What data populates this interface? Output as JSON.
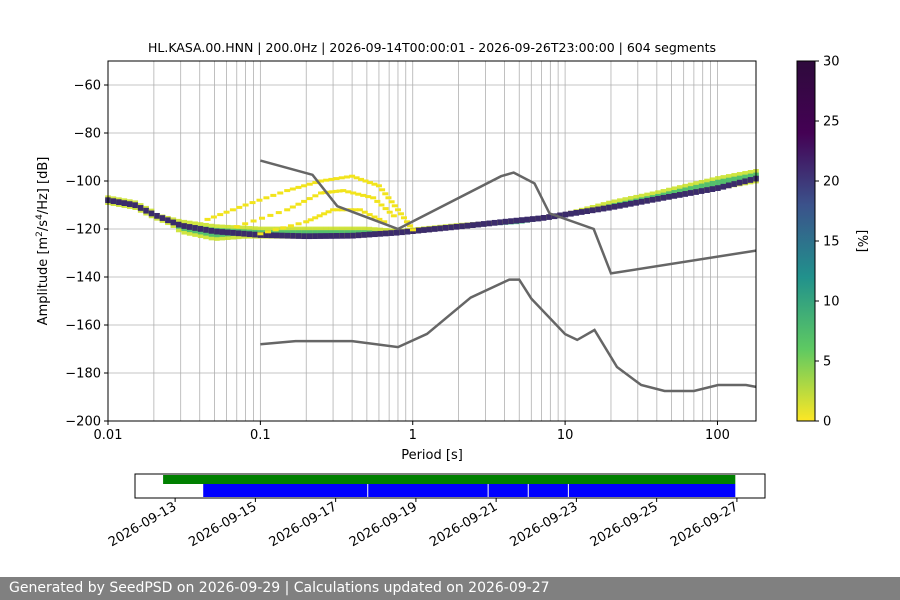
{
  "chart_data": [
    {
      "type": "heatmap",
      "title": "HL.KASA.00.HNN | 200.0Hz | 2026-09-14T00:00:01 - 2026-09-26T23:00:00 | 604 segments",
      "xlabel": "Period [s]",
      "ylabel_parts": [
        "Amplitude [m",
        "2",
        "/s",
        "4",
        "/Hz] [dB]"
      ],
      "x_scale": "log",
      "xlim": [
        0.01,
        179
      ],
      "ylim": [
        -200,
        -50
      ],
      "grid": "vertical lines at log ticks",
      "x_ticks": [
        {
          "v": 0.01,
          "label": "0.01"
        },
        {
          "v": 0.1,
          "label": "0.1"
        },
        {
          "v": 1,
          "label": "1"
        },
        {
          "v": 10,
          "label": "10"
        },
        {
          "v": 100,
          "label": "100"
        }
      ],
      "y_ticks": [
        {
          "v": -60,
          "label": "−60"
        },
        {
          "v": -80,
          "label": "−80"
        },
        {
          "v": -100,
          "label": "−100"
        },
        {
          "v": -120,
          "label": "−120"
        },
        {
          "v": -140,
          "label": "−140"
        },
        {
          "v": -160,
          "label": "−160"
        },
        {
          "v": -180,
          "label": "−180"
        },
        {
          "v": -200,
          "label": "−200"
        }
      ],
      "noise_model_color": "#666666",
      "noise_model_high": [
        [
          0.1,
          -91.5
        ],
        [
          0.22,
          -97.4
        ],
        [
          0.32,
          -110.5
        ],
        [
          0.8,
          -120
        ],
        [
          3.8,
          -98
        ],
        [
          4.6,
          -96.5
        ],
        [
          6.3,
          -101
        ],
        [
          7.9,
          -113.5
        ],
        [
          15.4,
          -120
        ],
        [
          20,
          -138.5
        ],
        [
          179,
          -129
        ]
      ],
      "noise_model_low": [
        [
          0.1,
          -168
        ],
        [
          0.17,
          -166.7
        ],
        [
          0.4,
          -166.7
        ],
        [
          0.8,
          -169.2
        ],
        [
          1.24,
          -163.7
        ],
        [
          2.4,
          -148.6
        ],
        [
          4.3,
          -141.1
        ],
        [
          5,
          -141.1
        ],
        [
          6,
          -149
        ],
        [
          10,
          -163.8
        ],
        [
          12,
          -166.2
        ],
        [
          15.6,
          -162.1
        ],
        [
          21.9,
          -177.5
        ],
        [
          31.6,
          -185
        ],
        [
          45,
          -187.5
        ],
        [
          70,
          -187.5
        ],
        [
          101,
          -185
        ],
        [
          154,
          -185
        ],
        [
          179,
          -185.8
        ]
      ],
      "density_trace": {
        "median": [
          [
            0.01,
            -108
          ],
          [
            0.015,
            -110
          ],
          [
            0.02,
            -114
          ],
          [
            0.03,
            -118.5
          ],
          [
            0.05,
            -121
          ],
          [
            0.1,
            -122.5
          ],
          [
            0.2,
            -123
          ],
          [
            0.4,
            -122.8
          ],
          [
            0.8,
            -121.5
          ],
          [
            2,
            -119
          ],
          [
            4,
            -117
          ],
          [
            7,
            -115.5
          ],
          [
            10,
            -114
          ],
          [
            20,
            -111
          ],
          [
            40,
            -107.5
          ],
          [
            100,
            -103
          ],
          [
            179,
            -99
          ]
        ],
        "upper_band": [
          [
            0.02,
            -113
          ],
          [
            0.03,
            -116
          ],
          [
            0.05,
            -118
          ],
          [
            0.1,
            -119
          ],
          [
            0.2,
            -119
          ],
          [
            0.5,
            -119
          ],
          [
            0.8,
            -120
          ],
          [
            2,
            -117.5
          ],
          [
            5,
            -116
          ],
          [
            10,
            -113
          ],
          [
            20,
            -108
          ],
          [
            40,
            -104
          ],
          [
            100,
            -98
          ],
          [
            179,
            -95
          ]
        ],
        "lower_band": [
          [
            0.025,
            -118
          ],
          [
            0.03,
            -122
          ],
          [
            0.05,
            -125
          ],
          [
            0.08,
            -124
          ],
          [
            0.1,
            -124
          ],
          [
            0.2,
            -124
          ],
          [
            0.5,
            -123.5
          ],
          [
            1,
            -122
          ],
          [
            2,
            -120
          ],
          [
            5,
            -117.5
          ],
          [
            10,
            -115
          ],
          [
            179,
            -101
          ]
        ],
        "scatter_loops": [
          [
            [
              0.045,
              -116
            ],
            [
              0.08,
              -110
            ],
            [
              0.15,
              -104
            ],
            [
              0.25,
              -100
            ],
            [
              0.4,
              -98
            ],
            [
              0.6,
              -102
            ],
            [
              0.8,
              -112
            ],
            [
              1.05,
              -122
            ]
          ],
          [
            [
              0.07,
              -119
            ],
            [
              0.15,
              -112
            ],
            [
              0.25,
              -105
            ],
            [
              0.35,
              -104
            ],
            [
              0.55,
              -107
            ],
            [
              0.8,
              -116
            ]
          ],
          [
            [
              0.1,
              -122
            ],
            [
              0.2,
              -117
            ],
            [
              0.3,
              -112
            ],
            [
              0.45,
              -112
            ],
            [
              0.7,
              -118
            ]
          ]
        ]
      },
      "colorbar": {
        "label": "[%]",
        "min": 0,
        "max": 30,
        "ticks": [
          {
            "v": 0,
            "label": "0"
          },
          {
            "v": 5,
            "label": "5"
          },
          {
            "v": 10,
            "label": "10"
          },
          {
            "v": 15,
            "label": "15"
          },
          {
            "v": 20,
            "label": "20"
          },
          {
            "v": 25,
            "label": "25"
          },
          {
            "v": 30,
            "label": "30"
          }
        ],
        "colors": [
          "#fde725",
          "#5ec962",
          "#21918c",
          "#3b528b",
          "#440154",
          "#2e0a3c"
        ]
      }
    },
    {
      "type": "timeline",
      "x_range_dates": [
        "2026-09-12",
        "2026-09-27.7"
      ],
      "data_span": {
        "start": "2026-09-12.7",
        "end": "2026-09-26.96",
        "color": "#008000"
      },
      "segment_span": {
        "start": "2026-09-13.7",
        "end": "2026-09-26.96",
        "color": "#0000ff"
      },
      "gap_dates": [
        "2026-09-17.8",
        "2026-09-20.8",
        "2026-09-21.8",
        "2026-09-22.8"
      ],
      "tick_labels": [
        "2026-09-13",
        "2026-09-15",
        "2026-09-17",
        "2026-09-19",
        "2026-09-21",
        "2026-09-23",
        "2026-09-25",
        "2026-09-27"
      ]
    }
  ],
  "footer": {
    "text": "Generated by SeedPSD on 2026-09-29 | Calculations updated on 2026-09-27"
  }
}
